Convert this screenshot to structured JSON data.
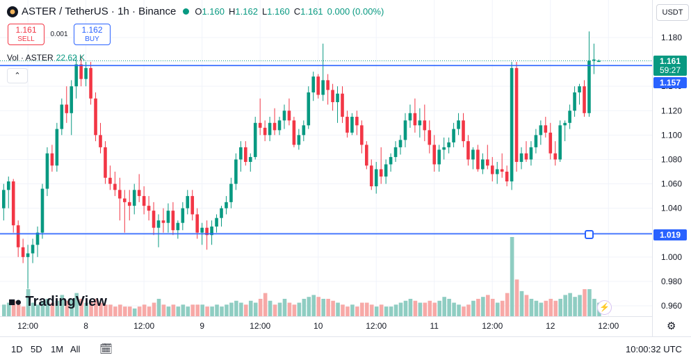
{
  "header": {
    "symbol_title": "ASTER / TetherUS · 1h · Binance",
    "o_label": "O",
    "o_value": "1.160",
    "h_label": "H",
    "h_value": "1.162",
    "l_label": "L",
    "l_value": "1.160",
    "c_label": "C",
    "c_value": "1.161",
    "change": "0.000 (0.00%)"
  },
  "trade": {
    "sell_price": "1.161",
    "sell_label": "SELL",
    "spread": "0.001",
    "buy_price": "1.162",
    "buy_label": "BUY"
  },
  "volume_legend": {
    "label": "Vol · ASTER",
    "value": "22.62 K"
  },
  "currency_button": "USDT",
  "price_labels": {
    "last": "1.161",
    "countdown": "59:27",
    "line_upper": "1.157",
    "line_lower": "1.019"
  },
  "brand": "TradingView",
  "timeframes": [
    "1D",
    "5D",
    "1M",
    "All"
  ],
  "clock": "10:00:32 UTC",
  "colors": {
    "up": "#089981",
    "down": "#f23645",
    "up_volume": "#8fcdc2",
    "down_volume": "#f7a9a7",
    "line": "#2962ff"
  },
  "icons": {
    "collapse": "chevron-up-icon",
    "settings": "gear-icon",
    "calendar": "calendar-range-icon",
    "alert": "lightning-icon"
  },
  "chart_data": {
    "type": "candlestick",
    "interval": "1h",
    "ylim": [
      0.95,
      1.19
    ],
    "y_ticks": [
      1.18,
      1.16,
      1.14,
      1.12,
      1.1,
      1.08,
      1.06,
      1.04,
      1.02,
      1.0,
      0.98,
      0.96
    ],
    "x_ticks": [
      {
        "label": "12:00",
        "index": 5
      },
      {
        "label": "8",
        "index": 17
      },
      {
        "label": "12:00",
        "index": 29
      },
      {
        "label": "9",
        "index": 41
      },
      {
        "label": "12:00",
        "index": 53
      },
      {
        "label": "10",
        "index": 65
      },
      {
        "label": "12:00",
        "index": 77
      },
      {
        "label": "11",
        "index": 89
      },
      {
        "label": "12:00",
        "index": 101
      },
      {
        "label": "12",
        "index": 113
      },
      {
        "label": "12:00",
        "index": 125
      }
    ],
    "horizontal_lines": [
      1.157,
      1.019
    ],
    "ohlcv": [
      [
        1.04,
        1.06,
        1.03,
        1.055,
        6
      ],
      [
        1.055,
        1.066,
        1.04,
        1.062,
        7
      ],
      [
        1.062,
        1.064,
        1.02,
        1.026,
        8
      ],
      [
        1.026,
        1.03,
        1.0,
        1.008,
        6
      ],
      [
        1.008,
        1.015,
        0.995,
        1.0,
        5
      ],
      [
        1.0,
        1.01,
        0.974,
        1.003,
        14
      ],
      [
        1.003,
        1.015,
        0.995,
        1.01,
        7
      ],
      [
        1.01,
        1.025,
        1.0,
        1.02,
        6
      ],
      [
        1.02,
        1.06,
        1.015,
        1.056,
        8
      ],
      [
        1.056,
        1.09,
        1.05,
        1.085,
        9
      ],
      [
        1.085,
        1.092,
        1.07,
        1.075,
        7
      ],
      [
        1.075,
        1.11,
        1.07,
        1.105,
        8
      ],
      [
        1.105,
        1.13,
        1.1,
        1.125,
        11
      ],
      [
        1.125,
        1.14,
        1.11,
        1.118,
        8
      ],
      [
        1.118,
        1.145,
        1.1,
        1.14,
        9
      ],
      [
        1.14,
        1.165,
        1.13,
        1.158,
        12
      ],
      [
        1.158,
        1.165,
        1.14,
        1.146,
        9
      ],
      [
        1.146,
        1.16,
        1.14,
        1.155,
        7
      ],
      [
        1.155,
        1.16,
        1.125,
        1.13,
        8
      ],
      [
        1.13,
        1.135,
        1.095,
        1.1,
        9
      ],
      [
        1.1,
        1.11,
        1.085,
        1.09,
        7
      ],
      [
        1.09,
        1.095,
        1.06,
        1.065,
        6
      ],
      [
        1.065,
        1.075,
        1.055,
        1.06,
        6
      ],
      [
        1.06,
        1.07,
        1.05,
        1.055,
        5
      ],
      [
        1.055,
        1.065,
        1.03,
        1.048,
        6
      ],
      [
        1.048,
        1.055,
        1.02,
        1.045,
        5
      ],
      [
        1.045,
        1.055,
        1.03,
        1.042,
        5
      ],
      [
        1.042,
        1.06,
        1.035,
        1.055,
        4
      ],
      [
        1.055,
        1.068,
        1.045,
        1.05,
        5
      ],
      [
        1.05,
        1.058,
        1.035,
        1.042,
        6
      ],
      [
        1.042,
        1.05,
        1.03,
        1.038,
        5
      ],
      [
        1.038,
        1.045,
        1.018,
        1.024,
        7
      ],
      [
        1.024,
        1.035,
        1.008,
        1.03,
        9
      ],
      [
        1.03,
        1.04,
        1.02,
        1.028,
        6
      ],
      [
        1.028,
        1.044,
        1.02,
        1.038,
        5
      ],
      [
        1.038,
        1.045,
        1.018,
        1.022,
        6
      ],
      [
        1.022,
        1.03,
        1.015,
        1.028,
        5
      ],
      [
        1.028,
        1.045,
        1.022,
        1.04,
        6
      ],
      [
        1.04,
        1.055,
        1.035,
        1.05,
        5
      ],
      [
        1.05,
        1.055,
        1.03,
        1.035,
        6
      ],
      [
        1.035,
        1.04,
        1.015,
        1.02,
        6
      ],
      [
        1.02,
        1.028,
        1.01,
        1.024,
        6
      ],
      [
        1.024,
        1.03,
        1.006,
        1.018,
        5
      ],
      [
        1.018,
        1.03,
        1.01,
        1.025,
        5
      ],
      [
        1.025,
        1.035,
        1.02,
        1.032,
        6
      ],
      [
        1.032,
        1.042,
        1.025,
        1.04,
        5
      ],
      [
        1.04,
        1.05,
        1.035,
        1.045,
        6
      ],
      [
        1.045,
        1.065,
        1.04,
        1.06,
        7
      ],
      [
        1.06,
        1.085,
        1.055,
        1.08,
        8
      ],
      [
        1.08,
        1.095,
        1.07,
        1.09,
        7
      ],
      [
        1.09,
        1.095,
        1.075,
        1.078,
        6
      ],
      [
        1.078,
        1.085,
        1.07,
        1.082,
        8
      ],
      [
        1.082,
        1.115,
        1.08,
        1.11,
        7
      ],
      [
        1.11,
        1.13,
        1.1,
        1.106,
        9
      ],
      [
        1.106,
        1.112,
        1.095,
        1.1,
        12
      ],
      [
        1.1,
        1.115,
        1.095,
        1.11,
        8
      ],
      [
        1.11,
        1.122,
        1.1,
        1.104,
        6
      ],
      [
        1.104,
        1.115,
        1.1,
        1.112,
        7
      ],
      [
        1.112,
        1.125,
        1.105,
        1.12,
        9
      ],
      [
        1.12,
        1.13,
        1.108,
        1.112,
        7
      ],
      [
        1.112,
        1.115,
        1.09,
        1.092,
        6
      ],
      [
        1.092,
        1.105,
        1.088,
        1.1,
        7
      ],
      [
        1.1,
        1.112,
        1.095,
        1.108,
        9
      ],
      [
        1.108,
        1.14,
        1.105,
        1.135,
        10
      ],
      [
        1.135,
        1.152,
        1.128,
        1.148,
        11
      ],
      [
        1.148,
        1.15,
        1.13,
        1.133,
        10
      ],
      [
        1.133,
        1.175,
        1.128,
        1.145,
        9
      ],
      [
        1.145,
        1.15,
        1.125,
        1.137,
        9
      ],
      [
        1.137,
        1.142,
        1.12,
        1.127,
        8
      ],
      [
        1.127,
        1.14,
        1.11,
        1.134,
        7
      ],
      [
        1.134,
        1.14,
        1.11,
        1.115,
        6
      ],
      [
        1.115,
        1.12,
        1.098,
        1.102,
        5
      ],
      [
        1.102,
        1.118,
        1.1,
        1.115,
        6
      ],
      [
        1.115,
        1.12,
        1.1,
        1.108,
        5
      ],
      [
        1.108,
        1.112,
        1.085,
        1.092,
        7
      ],
      [
        1.092,
        1.095,
        1.072,
        1.075,
        7
      ],
      [
        1.075,
        1.08,
        1.055,
        1.058,
        6
      ],
      [
        1.058,
        1.078,
        1.052,
        1.072,
        5
      ],
      [
        1.072,
        1.09,
        1.06,
        1.066,
        6
      ],
      [
        1.066,
        1.08,
        1.06,
        1.076,
        5
      ],
      [
        1.076,
        1.085,
        1.07,
        1.082,
        5
      ],
      [
        1.082,
        1.095,
        1.078,
        1.09,
        6
      ],
      [
        1.09,
        1.1,
        1.084,
        1.096,
        7
      ],
      [
        1.096,
        1.118,
        1.09,
        1.112,
        8
      ],
      [
        1.112,
        1.125,
        1.106,
        1.118,
        9
      ],
      [
        1.118,
        1.13,
        1.102,
        1.108,
        8
      ],
      [
        1.108,
        1.122,
        1.098,
        1.112,
        7
      ],
      [
        1.112,
        1.125,
        1.095,
        1.104,
        7
      ],
      [
        1.104,
        1.112,
        1.085,
        1.092,
        8
      ],
      [
        1.092,
        1.1,
        1.07,
        1.076,
        7
      ],
      [
        1.076,
        1.092,
        1.07,
        1.088,
        8
      ],
      [
        1.088,
        1.098,
        1.08,
        1.09,
        10
      ],
      [
        1.09,
        1.098,
        1.085,
        1.094,
        9
      ],
      [
        1.094,
        1.11,
        1.09,
        1.105,
        7
      ],
      [
        1.105,
        1.118,
        1.1,
        1.112,
        6
      ],
      [
        1.112,
        1.118,
        1.09,
        1.095,
        5
      ],
      [
        1.095,
        1.1,
        1.075,
        1.08,
        6
      ],
      [
        1.08,
        1.09,
        1.072,
        1.088,
        8
      ],
      [
        1.088,
        1.092,
        1.07,
        1.072,
        9
      ],
      [
        1.072,
        1.085,
        1.068,
        1.08,
        10
      ],
      [
        1.08,
        1.092,
        1.072,
        1.075,
        11
      ],
      [
        1.075,
        1.082,
        1.062,
        1.068,
        9
      ],
      [
        1.068,
        1.078,
        1.06,
        1.072,
        7
      ],
      [
        1.072,
        1.085,
        1.065,
        1.07,
        8
      ],
      [
        1.07,
        1.075,
        1.058,
        1.062,
        12
      ],
      [
        1.062,
        1.16,
        1.055,
        1.155,
        41
      ],
      [
        1.155,
        1.16,
        1.07,
        1.078,
        19
      ],
      [
        1.078,
        1.09,
        1.072,
        1.085,
        13
      ],
      [
        1.085,
        1.095,
        1.078,
        1.08,
        11
      ],
      [
        1.08,
        1.095,
        1.075,
        1.09,
        9
      ],
      [
        1.09,
        1.105,
        1.085,
        1.1,
        8
      ],
      [
        1.1,
        1.112,
        1.092,
        1.108,
        7
      ],
      [
        1.108,
        1.115,
        1.098,
        1.102,
        8
      ],
      [
        1.102,
        1.11,
        1.08,
        1.085,
        9
      ],
      [
        1.085,
        1.095,
        1.075,
        1.08,
        8
      ],
      [
        1.08,
        1.112,
        1.078,
        1.108,
        9
      ],
      [
        1.108,
        1.112,
        1.095,
        1.11,
        11
      ],
      [
        1.11,
        1.125,
        1.105,
        1.12,
        12
      ],
      [
        1.12,
        1.14,
        1.115,
        1.135,
        10
      ],
      [
        1.135,
        1.142,
        1.125,
        1.14,
        11
      ],
      [
        1.14,
        1.145,
        1.115,
        1.118,
        14
      ],
      [
        1.118,
        1.185,
        1.115,
        1.161,
        14
      ],
      [
        1.161,
        1.175,
        1.15,
        1.162,
        9
      ],
      [
        1.16,
        1.162,
        1.16,
        1.161,
        7
      ]
    ]
  }
}
